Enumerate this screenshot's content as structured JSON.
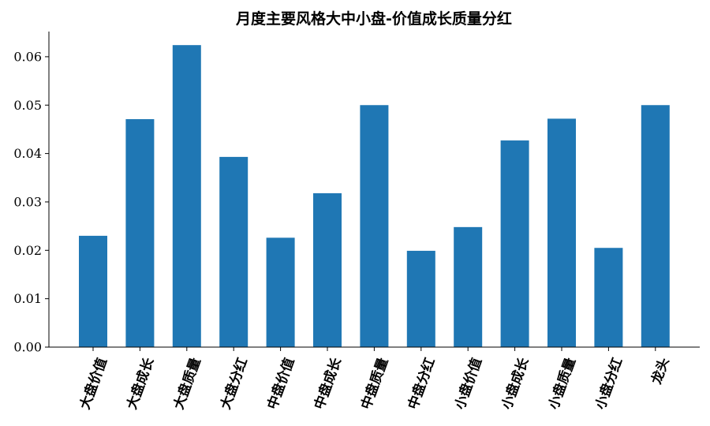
{
  "chart_data": {
    "type": "bar",
    "title": "月度主要风格大中小盘-价值成长质量分红",
    "xlabel": "",
    "ylabel": "",
    "categories": [
      "大盘价值",
      "大盘成长",
      "大盘质量",
      "大盘分红",
      "中盘价值",
      "中盘成长",
      "中盘质量",
      "中盘分红",
      "小盘价值",
      "小盘成长",
      "小盘质量",
      "小盘分红",
      "龙头"
    ],
    "values": [
      0.023,
      0.0471,
      0.0624,
      0.0393,
      0.0226,
      0.0318,
      0.05,
      0.0199,
      0.0248,
      0.0427,
      0.0472,
      0.0205,
      0.05
    ],
    "ylim": [
      0,
      0.065
    ],
    "yticks": [
      0.0,
      0.01,
      0.02,
      0.03,
      0.04,
      0.05,
      0.06
    ],
    "ytick_labels": [
      "0.00",
      "0.01",
      "0.02",
      "0.03",
      "0.04",
      "0.05",
      "0.06"
    ],
    "bar_color": "#1f77b4",
    "grid": false,
    "legend": "none"
  }
}
